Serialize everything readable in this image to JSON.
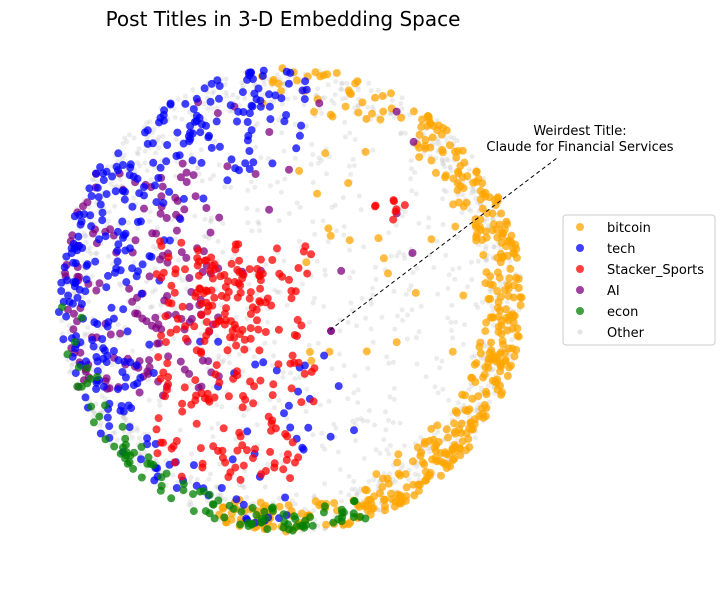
{
  "chart_data": {
    "type": "scatter",
    "title": "Post Titles in 3-D Embedding Space",
    "xlabel": "",
    "ylabel": "",
    "axes_visible": false,
    "grid": false,
    "projection": "sphere (3-D)",
    "legend_position": "right",
    "annotation": {
      "line1": "Weirdest Title:",
      "line2": "Claude for Financial Services",
      "arrow_style": "dashed"
    },
    "series": [
      {
        "name": "bitcoin",
        "color": "#FFA500",
        "region": "right-edge-and-bottom"
      },
      {
        "name": "tech",
        "color": "#0000FF",
        "region": "upper-left"
      },
      {
        "name": "Stacker_Sports",
        "color": "#FF0000",
        "region": "center-lower-left"
      },
      {
        "name": "AI",
        "color": "#800080",
        "region": "left"
      },
      {
        "name": "econ",
        "color": "#008000",
        "region": "bottom-edge"
      },
      {
        "name": "Other",
        "color": "#C8C8C8",
        "region": "everywhere"
      }
    ]
  }
}
